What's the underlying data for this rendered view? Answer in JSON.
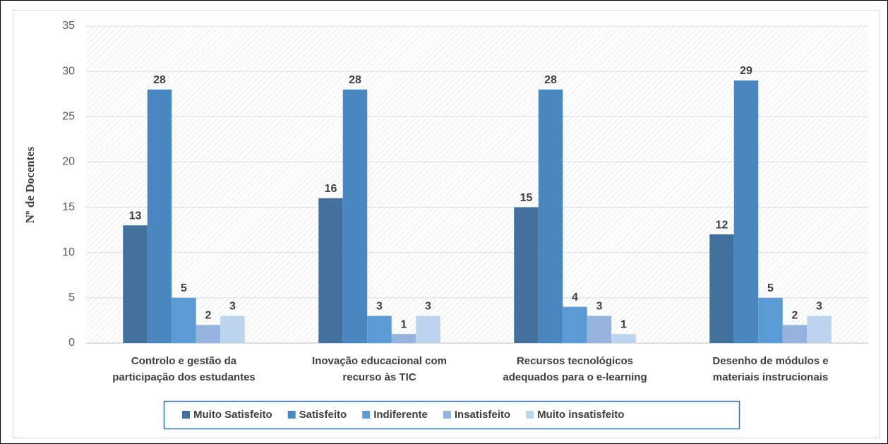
{
  "chart_data": {
    "type": "bar",
    "y_label": "Nº de Docentes",
    "categories": [
      "Controlo e gestão da participação dos estudantes",
      "Inovação educacional com recurso às TIC",
      "Recursos tecnológicos adequados para o e-learning",
      "Desenho de módulos e materiais instrucionais"
    ],
    "series": [
      {
        "name": "Muito Satisfeito",
        "color": "#41719c",
        "values": [
          13,
          16,
          15,
          12
        ]
      },
      {
        "name": "Satisfeito",
        "color": "#4a86c0",
        "values": [
          28,
          28,
          28,
          29
        ]
      },
      {
        "name": "Indiferente",
        "color": "#5b9bd5",
        "values": [
          5,
          3,
          4,
          5
        ]
      },
      {
        "name": "Insatisfeito",
        "color": "#95b3dc",
        "values": [
          2,
          1,
          3,
          2
        ]
      },
      {
        "name": "Muito insatisfeito",
        "color": "#bdd4ee",
        "values": [
          3,
          3,
          1,
          3
        ]
      }
    ],
    "ylim": [
      0,
      35
    ],
    "yticks": [
      0,
      5,
      10,
      15,
      20,
      25,
      30,
      35
    ],
    "grid": true,
    "legend": "bottom"
  }
}
